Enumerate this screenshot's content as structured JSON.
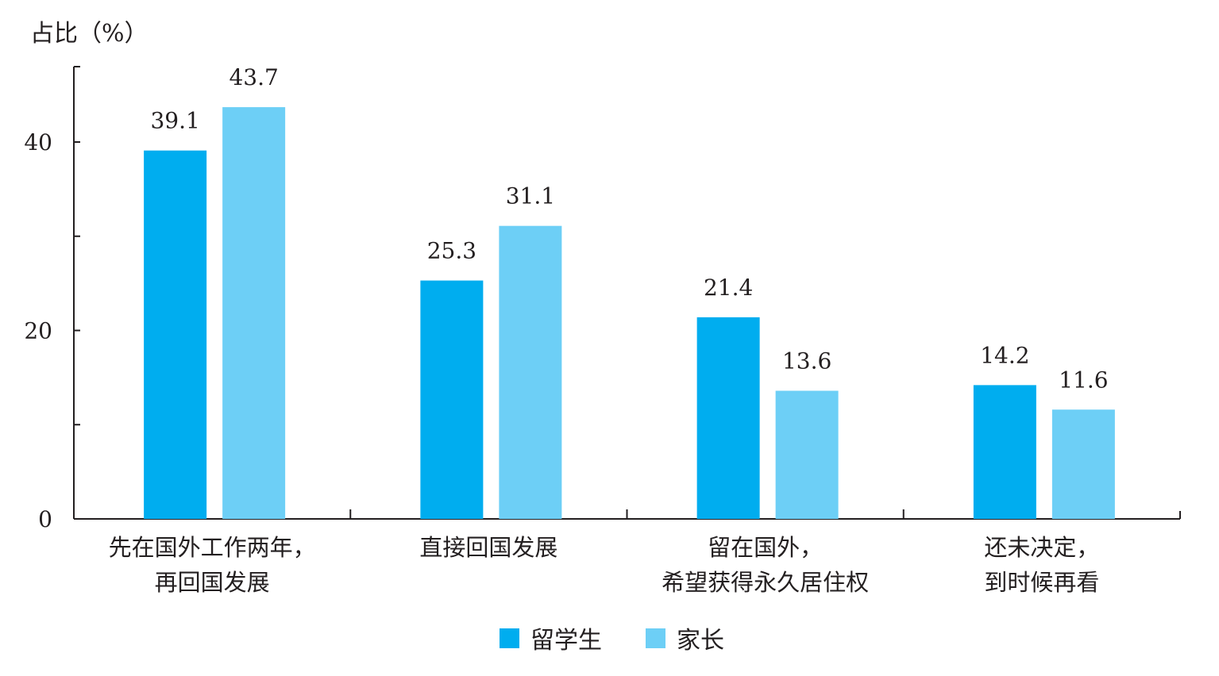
{
  "chart_data": {
    "type": "bar",
    "title": "",
    "ylabel": "占比（%）",
    "xlabel": "",
    "ylim": [
      0,
      48
    ],
    "y_ticks": [
      0,
      20,
      40
    ],
    "y_minor_ticks": [
      10,
      30
    ],
    "grid": false,
    "legend_position": "bottom-center",
    "categories": [
      [
        "先在国外工作两年，",
        "再回国发展"
      ],
      [
        "直接回国发展"
      ],
      [
        "留在国外，",
        "希望获得永久居住权"
      ],
      [
        "还未决定，",
        "到时候再看"
      ]
    ],
    "series": [
      {
        "name": "留学生",
        "color": "#00adef",
        "values": [
          39.1,
          25.3,
          21.4,
          14.2
        ]
      },
      {
        "name": "家长",
        "color": "#6dcff6",
        "values": [
          43.7,
          31.1,
          13.6,
          11.6
        ]
      }
    ]
  }
}
